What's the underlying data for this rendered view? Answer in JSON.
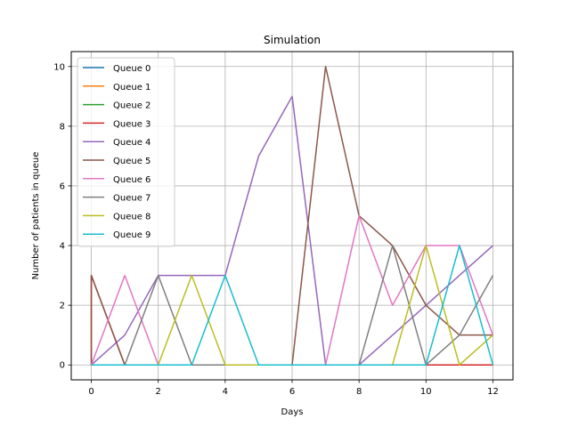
{
  "chart_data": {
    "type": "line",
    "title": "Simulation",
    "xlabel": "Days",
    "ylabel": "Number of patients in queue",
    "xlim": [
      -0.6,
      12.6
    ],
    "ylim": [
      -0.5,
      10.5
    ],
    "x_ticks": [
      0,
      2,
      4,
      6,
      8,
      10,
      12
    ],
    "y_ticks": [
      0,
      2,
      4,
      6,
      8,
      10
    ],
    "grid": true,
    "legend_position": "upper-left",
    "series": [
      {
        "name": "Queue 0",
        "color": "#1f77b4",
        "points": [
          [
            0,
            0
          ],
          [
            12,
            0
          ]
        ]
      },
      {
        "name": "Queue 1",
        "color": "#ff7f0e",
        "points": [
          [
            0,
            0
          ],
          [
            12,
            0
          ]
        ]
      },
      {
        "name": "Queue 2",
        "color": "#2ca02c",
        "points": [
          [
            0,
            0
          ],
          [
            12,
            0
          ]
        ]
      },
      {
        "name": "Queue 3",
        "color": "#d62728",
        "points": [
          [
            0,
            0
          ],
          [
            0,
            3
          ],
          [
            1,
            0
          ],
          [
            2,
            0
          ],
          [
            3,
            0
          ],
          [
            4,
            0
          ],
          [
            5,
            0
          ],
          [
            6,
            0
          ],
          [
            7,
            0
          ],
          [
            8,
            0
          ],
          [
            9,
            0
          ],
          [
            10,
            0
          ],
          [
            11,
            0
          ],
          [
            12,
            0
          ]
        ]
      },
      {
        "name": "Queue 4",
        "color": "#9467bd",
        "points": [
          [
            0,
            0
          ],
          [
            1,
            1
          ],
          [
            2,
            3
          ],
          [
            3,
            3
          ],
          [
            4,
            3
          ],
          [
            5,
            7
          ],
          [
            6,
            9
          ],
          [
            7,
            0
          ],
          [
            8,
            0
          ],
          [
            9,
            1
          ],
          [
            10,
            2
          ],
          [
            11,
            3
          ],
          [
            12,
            4
          ]
        ]
      },
      {
        "name": "Queue 5",
        "color": "#8c564b",
        "points": [
          [
            0,
            0
          ],
          [
            0,
            3
          ],
          [
            1,
            0
          ],
          [
            2,
            0
          ],
          [
            3,
            0
          ],
          [
            4,
            0
          ],
          [
            5,
            0
          ],
          [
            6,
            0
          ],
          [
            7,
            10
          ],
          [
            8,
            5
          ],
          [
            9,
            4
          ],
          [
            10,
            2
          ],
          [
            11,
            1
          ],
          [
            12,
            1
          ]
        ]
      },
      {
        "name": "Queue 6",
        "color": "#e377c2",
        "points": [
          [
            0,
            0
          ],
          [
            1,
            3
          ],
          [
            2,
            0
          ],
          [
            3,
            0
          ],
          [
            4,
            0
          ],
          [
            5,
            0
          ],
          [
            6,
            0
          ],
          [
            7,
            0
          ],
          [
            8,
            5
          ],
          [
            9,
            2
          ],
          [
            10,
            4
          ],
          [
            11,
            4
          ],
          [
            12,
            1
          ]
        ]
      },
      {
        "name": "Queue 7",
        "color": "#7f7f7f",
        "points": [
          [
            0,
            0
          ],
          [
            1,
            0
          ],
          [
            2,
            3
          ],
          [
            3,
            0
          ],
          [
            4,
            0
          ],
          [
            5,
            0
          ],
          [
            6,
            0
          ],
          [
            7,
            0
          ],
          [
            8,
            0
          ],
          [
            9,
            4
          ],
          [
            10,
            0
          ],
          [
            11,
            1
          ],
          [
            12,
            3
          ]
        ]
      },
      {
        "name": "Queue 8",
        "color": "#bcbd22",
        "points": [
          [
            0,
            0
          ],
          [
            1,
            0
          ],
          [
            2,
            0
          ],
          [
            3,
            3
          ],
          [
            4,
            0
          ],
          [
            5,
            0
          ],
          [
            6,
            0
          ],
          [
            7,
            0
          ],
          [
            8,
            0
          ],
          [
            9,
            0
          ],
          [
            10,
            4
          ],
          [
            11,
            0
          ],
          [
            12,
            1
          ]
        ]
      },
      {
        "name": "Queue 9",
        "color": "#17becf",
        "points": [
          [
            0,
            0
          ],
          [
            1,
            0
          ],
          [
            2,
            0
          ],
          [
            3,
            0
          ],
          [
            4,
            3
          ],
          [
            5,
            0
          ],
          [
            6,
            0
          ],
          [
            7,
            0
          ],
          [
            8,
            0
          ],
          [
            9,
            0
          ],
          [
            10,
            0
          ],
          [
            11,
            4
          ],
          [
            12,
            0
          ]
        ]
      }
    ]
  }
}
